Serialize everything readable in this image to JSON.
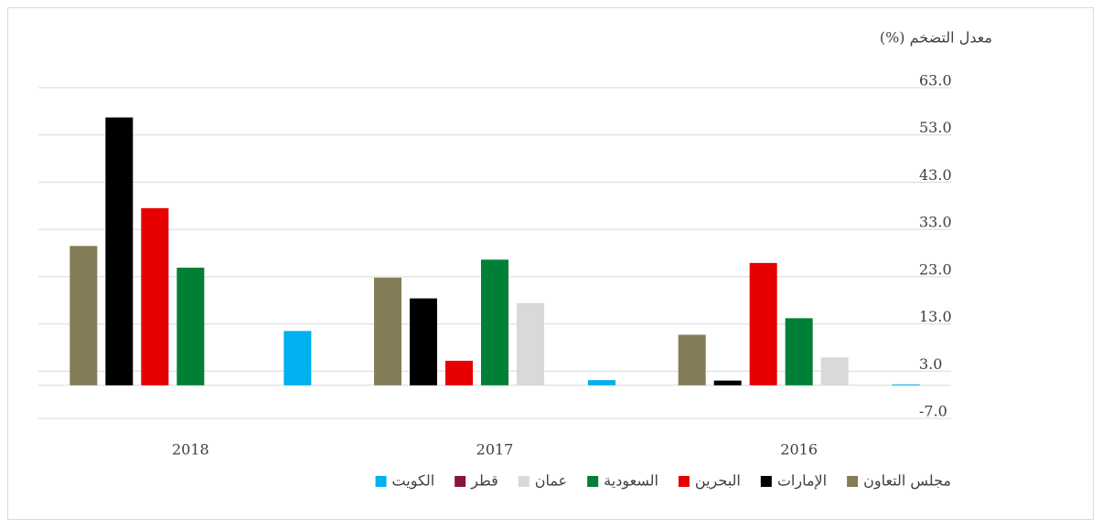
{
  "chart_data": {
    "type": "bar",
    "title": "معدل التضخم (%)",
    "categories": [
      "2016",
      "2017",
      "2018"
    ],
    "series": [
      {
        "name": "مجلس التعاون",
        "color": "#857c58",
        "values": [
          10.7,
          22.8,
          29.5
        ]
      },
      {
        "name": "الإمارات",
        "color": "#000000",
        "values": [
          1.0,
          18.4,
          56.7
        ]
      },
      {
        "name": "البحرين",
        "color": "#e60000",
        "values": [
          25.9,
          5.2,
          37.5
        ]
      },
      {
        "name": "السعودية",
        "color": "#008036",
        "values": [
          14.2,
          26.6,
          24.9
        ]
      },
      {
        "name": "عمان",
        "color": "#d9d9d9",
        "values": [
          5.9,
          17.4,
          0
        ]
      },
      {
        "name": "قطر",
        "color": "#8b1538",
        "values": [
          0,
          0,
          0
        ]
      },
      {
        "name": "الكويت",
        "color": "#00b0f0",
        "values": [
          0.2,
          1.1,
          11.5
        ]
      }
    ],
    "ylim": [
      -7,
      63
    ],
    "yticks": [
      {
        "value": -7,
        "label": "-7.0"
      },
      {
        "value": 3,
        "label": "3.0"
      },
      {
        "value": 13,
        "label": "13.0"
      },
      {
        "value": 23,
        "label": "23.0"
      },
      {
        "value": 33,
        "label": "33.0"
      },
      {
        "value": 43,
        "label": "43.0"
      },
      {
        "value": 53,
        "label": "53.0"
      },
      {
        "value": 63,
        "label": "63.0"
      }
    ],
    "grid": true,
    "reversed_categories": true,
    "legend": "bottom"
  }
}
